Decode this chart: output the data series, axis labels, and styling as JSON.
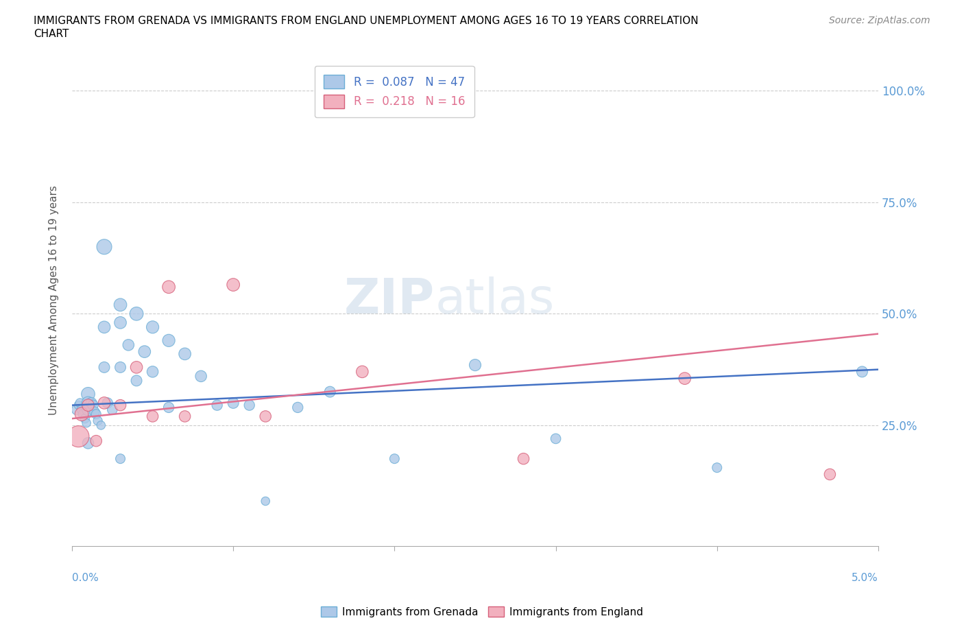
{
  "title_line1": "IMMIGRANTS FROM GRENADA VS IMMIGRANTS FROM ENGLAND UNEMPLOYMENT AMONG AGES 16 TO 19 YEARS CORRELATION",
  "title_line2": "CHART",
  "source": "Source: ZipAtlas.com",
  "ylabel": "Unemployment Among Ages 16 to 19 years",
  "ytick_values": [
    1.0,
    0.75,
    0.5,
    0.25
  ],
  "xlim": [
    0.0,
    0.05
  ],
  "ylim": [
    -0.02,
    1.08
  ],
  "axis_label_color": "#5b9bd5",
  "grenada_color": "#adc8e8",
  "england_color": "#f2b0be",
  "grenada_edge": "#6baed6",
  "england_edge": "#d6607a",
  "line_color_grenada": "#4472c4",
  "line_color_england": "#e07090",
  "grenada_x": [
    0.0003,
    0.0004,
    0.0005,
    0.0006,
    0.0007,
    0.0008,
    0.0009,
    0.001,
    0.001,
    0.001,
    0.001,
    0.0012,
    0.0013,
    0.0014,
    0.0015,
    0.0016,
    0.0018,
    0.002,
    0.002,
    0.002,
    0.0022,
    0.0025,
    0.003,
    0.003,
    0.003,
    0.003,
    0.0035,
    0.004,
    0.004,
    0.0045,
    0.005,
    0.005,
    0.006,
    0.006,
    0.007,
    0.008,
    0.009,
    0.01,
    0.011,
    0.012,
    0.014,
    0.016,
    0.02,
    0.025,
    0.03,
    0.04,
    0.049
  ],
  "grenada_y": [
    0.285,
    0.295,
    0.3,
    0.285,
    0.275,
    0.265,
    0.255,
    0.32,
    0.3,
    0.285,
    0.21,
    0.3,
    0.295,
    0.28,
    0.275,
    0.26,
    0.25,
    0.65,
    0.47,
    0.38,
    0.3,
    0.285,
    0.52,
    0.48,
    0.38,
    0.175,
    0.43,
    0.5,
    0.35,
    0.415,
    0.47,
    0.37,
    0.44,
    0.29,
    0.41,
    0.36,
    0.295,
    0.3,
    0.295,
    0.08,
    0.29,
    0.325,
    0.175,
    0.385,
    0.22,
    0.155,
    0.37
  ],
  "grenada_sizes": [
    120,
    80,
    90,
    100,
    110,
    90,
    80,
    200,
    180,
    160,
    140,
    130,
    120,
    110,
    100,
    90,
    80,
    250,
    160,
    130,
    120,
    110,
    180,
    160,
    130,
    100,
    140,
    200,
    130,
    160,
    170,
    140,
    170,
    120,
    160,
    140,
    120,
    130,
    120,
    80,
    120,
    130,
    100,
    150,
    110,
    100,
    130
  ],
  "england_x": [
    0.0004,
    0.0006,
    0.001,
    0.0015,
    0.002,
    0.003,
    0.004,
    0.005,
    0.006,
    0.007,
    0.01,
    0.012,
    0.018,
    0.028,
    0.038,
    0.047
  ],
  "england_y": [
    0.225,
    0.275,
    0.295,
    0.215,
    0.3,
    0.295,
    0.38,
    0.27,
    0.56,
    0.27,
    0.565,
    0.27,
    0.37,
    0.175,
    0.355,
    0.14
  ],
  "england_sizes": [
    500,
    200,
    160,
    140,
    160,
    140,
    160,
    140,
    180,
    140,
    180,
    140,
    160,
    140,
    160,
    140
  ],
  "grenada_R": 0.087,
  "grenada_N": 47,
  "england_R": 0.218,
  "england_N": 16,
  "grenada_line_x0": 0.0,
  "grenada_line_y0": 0.295,
  "grenada_line_x1": 0.05,
  "grenada_line_y1": 0.375,
  "england_line_x0": 0.0,
  "england_line_y0": 0.265,
  "england_line_x1": 0.05,
  "england_line_y1": 0.455
}
